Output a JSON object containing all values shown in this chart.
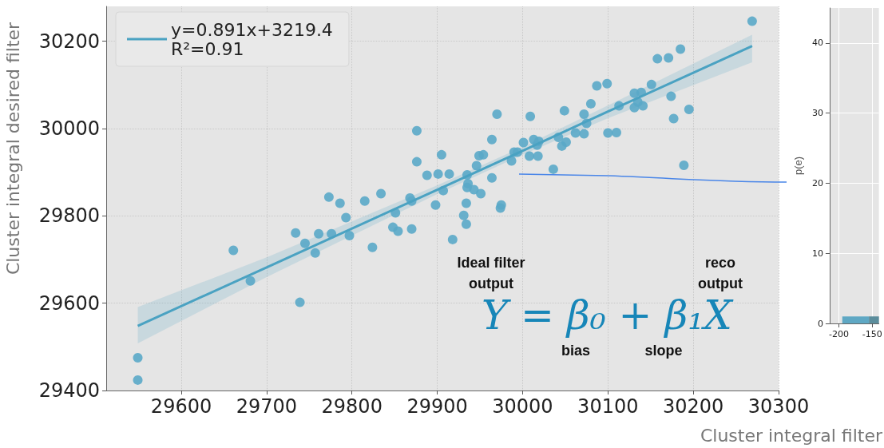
{
  "chart_data": [
    {
      "type": "scatter",
      "xlabel": "Cluster integral filter",
      "ylabel": "Cluster integral desired filter",
      "xlim": [
        29512,
        30300
      ],
      "ylim": [
        29400,
        30280
      ],
      "xticks": [
        29600,
        29700,
        29800,
        29900,
        30000,
        30100,
        30200,
        30300
      ],
      "yticks": [
        29400,
        29600,
        29800,
        30000,
        30200
      ],
      "grid": true,
      "legend": "top left",
      "annotations": [
        "Ideal filter output",
        "reco output",
        "Y = β₀ + β₁X",
        "bias",
        "slope"
      ],
      "series": [
        {
          "type": "scatter",
          "marker": "circle",
          "color": "#5aa9c8",
          "x": [
            29549,
            29549,
            29661,
            29681,
            29739,
            29734,
            29745,
            29761,
            29757,
            29776,
            29797,
            29824,
            29773,
            29786,
            29793,
            29815,
            29834,
            29851,
            29848,
            29854,
            29870,
            29868,
            29870,
            29876,
            29876,
            29888,
            29898,
            29901,
            29905,
            29914,
            29918,
            29907,
            29934,
            29931,
            29934,
            29935,
            29936,
            29935,
            29943,
            29951,
            29946,
            29949,
            29954,
            29964,
            29964,
            29970,
            29975,
            29974,
            29987,
            29990,
            29994,
            30001,
            30008,
            30009,
            30013,
            30018,
            30017,
            30019,
            30036,
            30042,
            30046,
            30051,
            30049,
            30062,
            30072,
            30075,
            30072,
            30080,
            30087,
            30099,
            30100,
            30110,
            30113,
            30131,
            30131,
            30139,
            30135,
            30141,
            30151,
            30158,
            30171,
            30174,
            30177,
            30185,
            30189,
            30195,
            30269
          ],
          "values": [
            29475,
            29424,
            29721,
            29651,
            29602,
            29761,
            29737,
            29759,
            29715,
            29759,
            29755,
            29728,
            29843,
            29829,
            29796,
            29834,
            29851,
            29807,
            29774,
            29765,
            29770,
            29841,
            29834,
            29995,
            29924,
            29893,
            29825,
            29896,
            29940,
            29896,
            29746,
            29858,
            29829,
            29801,
            29781,
            29894,
            29874,
            29865,
            29860,
            29851,
            29915,
            29938,
            29940,
            29887,
            29975,
            30033,
            29825,
            29818,
            29926,
            29946,
            29946,
            29968,
            29937,
            30028,
            29975,
            29937,
            29962,
            29971,
            29907,
            29980,
            29960,
            29969,
            30041,
            29990,
            29988,
            30012,
            30033,
            30057,
            30098,
            30103,
            29990,
            29991,
            30052,
            30048,
            30081,
            30083,
            30061,
            30052,
            30101,
            30160,
            30162,
            30074,
            30023,
            30182,
            29916,
            30044,
            30246
          ]
        },
        {
          "type": "line",
          "name": "y=0.891x+3219.4\nR²=0.91",
          "color": "#4aa2c2",
          "x": [
            29549,
            29700,
            29900,
            30000,
            30100,
            30269
          ],
          "values": [
            29548,
            29682,
            29860,
            29949,
            30039,
            30189
          ],
          "lower": [
            29508,
            29660,
            29850,
            29940,
            30024,
            30152
          ],
          "upper": [
            29591,
            29705,
            29870,
            29958,
            30053,
            30215
          ]
        }
      ]
    },
    {
      "type": "histogram",
      "ylabel": "p(e)",
      "bins": [
        -195,
        -155,
        -140
      ],
      "values": [
        1,
        1
      ],
      "colors": [
        "#5fa8c4",
        "#5b8d9c"
      ],
      "xlim": [
        -214,
        -140
      ],
      "xticks": [
        -200,
        -150
      ],
      "ylim": [
        0,
        45
      ],
      "yticks": [
        0,
        10,
        20,
        30,
        40
      ],
      "grid": true
    }
  ]
}
